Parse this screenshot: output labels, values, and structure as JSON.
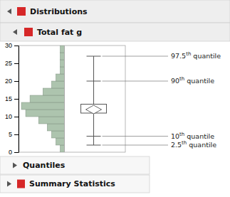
{
  "chart_data": {
    "type": "histogram",
    "title": "Distributions",
    "subtitle": "Total fat g",
    "footers": [
      "Quantiles",
      "Summary Statistics"
    ],
    "bins": [
      0,
      2,
      4,
      6,
      8,
      10,
      12,
      14,
      16,
      18,
      20,
      22,
      24,
      26,
      28,
      30
    ],
    "counts": [
      1,
      2,
      3,
      4,
      6,
      9,
      10,
      8,
      5,
      3,
      2,
      1,
      1,
      1,
      1
    ],
    "color": "#adc4ae",
    "ylim": [
      0,
      30
    ],
    "yticks": [
      0,
      5,
      10,
      15,
      20,
      25,
      30
    ],
    "tick_labels": "y",
    "box": {
      "q25": 11.0,
      "q75": 13.5,
      "median": 12.0,
      "whisker_high": 27.0,
      "whisker_low": 2.0,
      "q90": 20.0,
      "q10": 4.5
    },
    "annotations": [
      {
        "text": "97.5th quantile",
        "y": 27.0
      },
      {
        "text": "90th quantile",
        "y": 20.0
      },
      {
        "text": "10th quantile",
        "y": 4.5
      },
      {
        "text": "2.5th quantile",
        "y": 2.0
      }
    ]
  }
}
